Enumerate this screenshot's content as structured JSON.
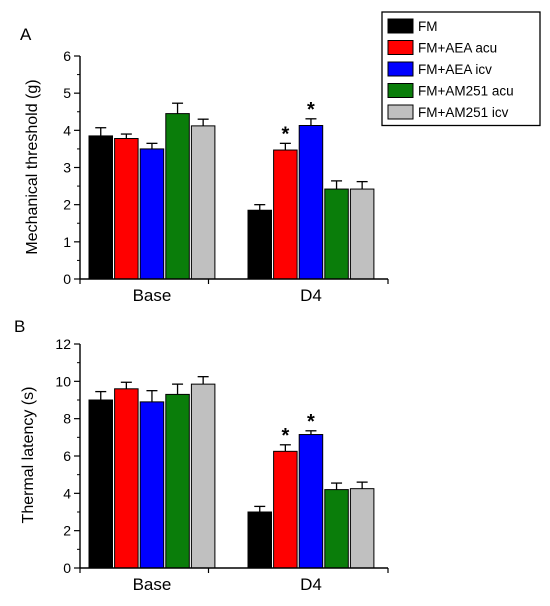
{
  "legend": {
    "items": [
      {
        "label": "FM",
        "color": "#000000"
      },
      {
        "label": "FM+AEA acu",
        "color": "#ff0000"
      },
      {
        "label": "FM+AEA icv",
        "color": "#0000ff"
      },
      {
        "label": "FM+AM251 acu",
        "color": "#0a7d0a"
      },
      {
        "label": "FM+AM251 icv",
        "color": "#c0c0c0"
      }
    ]
  },
  "chart_data": [
    {
      "panel": "A",
      "type": "bar",
      "ylabel": "Mechanical threshold (g)",
      "xlabel": "",
      "ylim": [
        0,
        6
      ],
      "yticks": [
        0,
        1,
        2,
        3,
        4,
        5,
        6
      ],
      "categories": [
        "Base",
        "D4"
      ],
      "series": [
        {
          "name": "FM",
          "values": [
            3.85,
            1.85
          ],
          "errors": [
            0.22,
            0.15
          ],
          "significant": [
            false,
            false
          ]
        },
        {
          "name": "FM+AEA acu",
          "values": [
            3.78,
            3.47
          ],
          "errors": [
            0.12,
            0.18
          ],
          "significant": [
            false,
            true
          ]
        },
        {
          "name": "FM+AEA icv",
          "values": [
            3.5,
            4.13
          ],
          "errors": [
            0.15,
            0.18
          ],
          "significant": [
            false,
            true
          ]
        },
        {
          "name": "FM+AM251 acu",
          "values": [
            4.45,
            2.42
          ],
          "errors": [
            0.28,
            0.22
          ],
          "significant": [
            false,
            false
          ]
        },
        {
          "name": "FM+AM251 icv",
          "values": [
            4.12,
            2.42
          ],
          "errors": [
            0.18,
            0.2
          ],
          "significant": [
            false,
            false
          ]
        }
      ],
      "annotation": "*"
    },
    {
      "panel": "B",
      "type": "bar",
      "ylabel": "Thermal latency (s)",
      "xlabel": "",
      "ylim": [
        0,
        12
      ],
      "yticks": [
        0,
        2,
        4,
        6,
        8,
        10,
        12
      ],
      "categories": [
        "Base",
        "D4"
      ],
      "series": [
        {
          "name": "FM",
          "values": [
            9.0,
            3.0
          ],
          "errors": [
            0.45,
            0.3
          ],
          "significant": [
            false,
            false
          ]
        },
        {
          "name": "FM+AEA acu",
          "values": [
            9.6,
            6.25
          ],
          "errors": [
            0.35,
            0.35
          ],
          "significant": [
            false,
            true
          ]
        },
        {
          "name": "FM+AEA icv",
          "values": [
            8.9,
            7.15
          ],
          "errors": [
            0.6,
            0.2
          ],
          "significant": [
            false,
            true
          ]
        },
        {
          "name": "FM+AM251 acu",
          "values": [
            9.3,
            4.2
          ],
          "errors": [
            0.55,
            0.35
          ],
          "significant": [
            false,
            false
          ]
        },
        {
          "name": "FM+AM251 icv",
          "values": [
            9.85,
            4.25
          ],
          "errors": [
            0.4,
            0.35
          ],
          "significant": [
            false,
            false
          ]
        }
      ],
      "annotation": "*"
    }
  ]
}
